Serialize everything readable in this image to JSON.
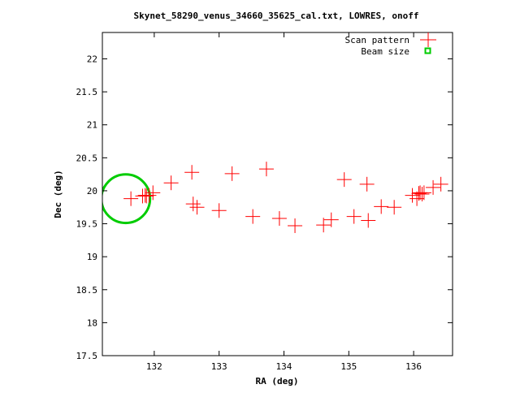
{
  "chart_data": {
    "type": "scatter",
    "title": "Skynet_58290_venus_34660_35625_cal.txt, LOWRES, onoff",
    "xlabel": "RA (deg)",
    "ylabel": "Dec (deg)",
    "xlim": [
      131.2,
      136.6
    ],
    "ylim": [
      17.5,
      22.4
    ],
    "x_ticks": [
      132,
      133,
      134,
      135,
      136
    ],
    "x_tick_labels": [
      "132",
      "133",
      "134",
      "135",
      "136"
    ],
    "y_ticks": [
      17.5,
      18,
      18.5,
      19,
      19.5,
      20,
      20.5,
      21,
      21.5,
      22
    ],
    "y_tick_labels": [
      "17.5",
      "18",
      "18.5",
      "19",
      "19.5",
      "20",
      "20.5",
      "21",
      "21.5",
      "22"
    ],
    "grid": false,
    "legend_position": "top-right",
    "series": [
      {
        "name": "Scan pattern",
        "marker": "plus",
        "color": "#ff0000",
        "x": [
          131.64,
          131.82,
          131.86,
          131.88,
          131.92,
          131.98,
          132.26,
          132.58,
          132.6,
          132.66,
          133.0,
          133.2,
          133.52,
          133.73,
          133.93,
          134.17,
          134.61,
          134.73,
          134.93,
          135.08,
          135.28,
          135.3,
          135.5,
          135.7,
          135.98,
          136.05,
          136.08,
          136.1,
          136.13,
          136.16,
          136.3,
          136.42
        ],
        "y": [
          19.88,
          19.92,
          19.93,
          19.92,
          19.93,
          19.97,
          20.12,
          20.28,
          19.8,
          19.75,
          19.7,
          20.26,
          19.61,
          20.33,
          19.58,
          19.47,
          19.48,
          19.56,
          20.17,
          19.61,
          20.1,
          19.55,
          19.76,
          19.75,
          19.93,
          19.88,
          19.96,
          19.97,
          19.95,
          19.97,
          20.05,
          20.1
        ]
      },
      {
        "name": "Beam size",
        "marker": "circle",
        "color": "#00cc00",
        "center_x": 131.56,
        "center_y": 19.88,
        "radius_deg": 0.375
      }
    ]
  }
}
